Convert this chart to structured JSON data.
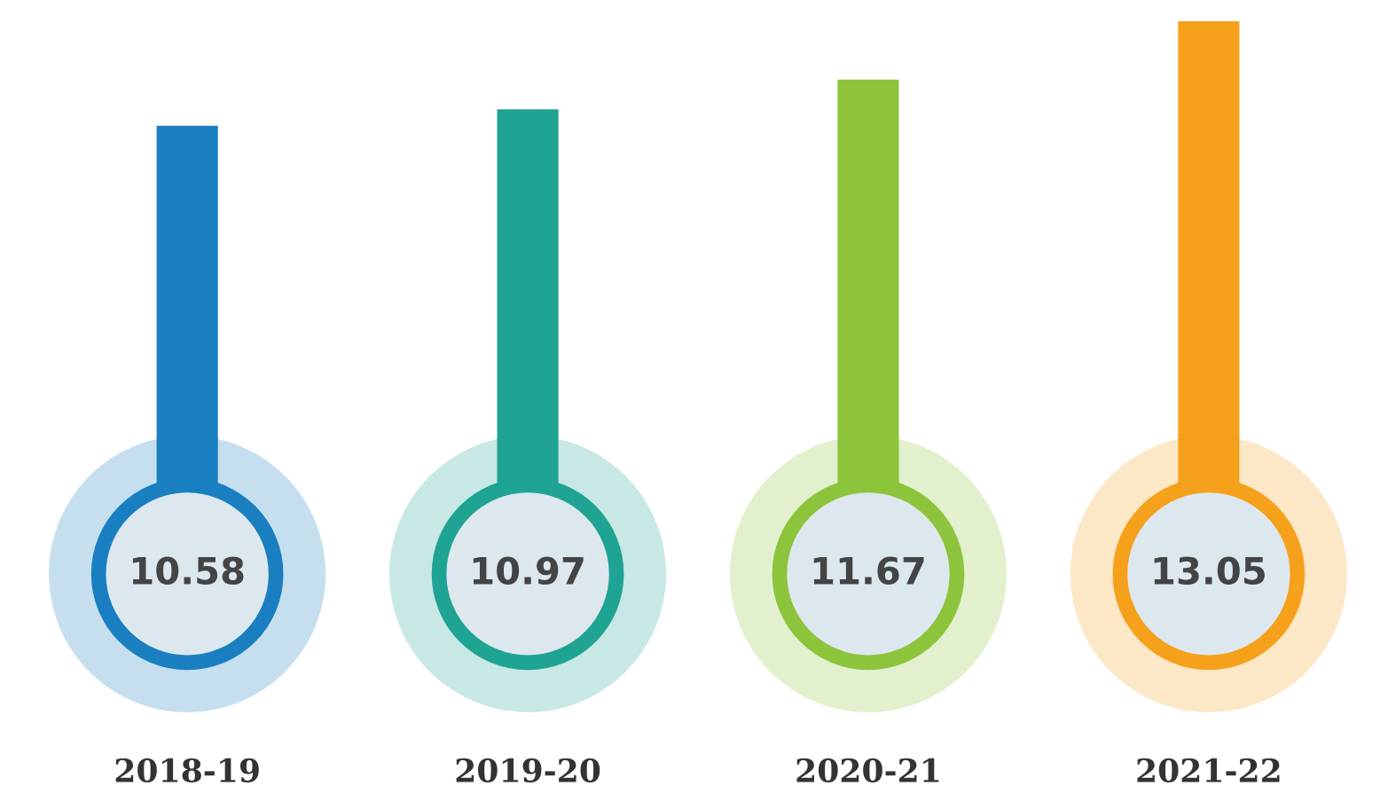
{
  "chart_data": {
    "type": "bar",
    "categories": [
      "2018-19",
      "2019-20",
      "2020-21",
      "2021-22"
    ],
    "values": [
      10.58,
      10.97,
      11.67,
      13.05
    ],
    "colors": [
      "#1a7fc1",
      "#1fa393",
      "#8cc43c",
      "#f5a11c"
    ],
    "data_labels": true,
    "grid": false,
    "legend": false
  }
}
